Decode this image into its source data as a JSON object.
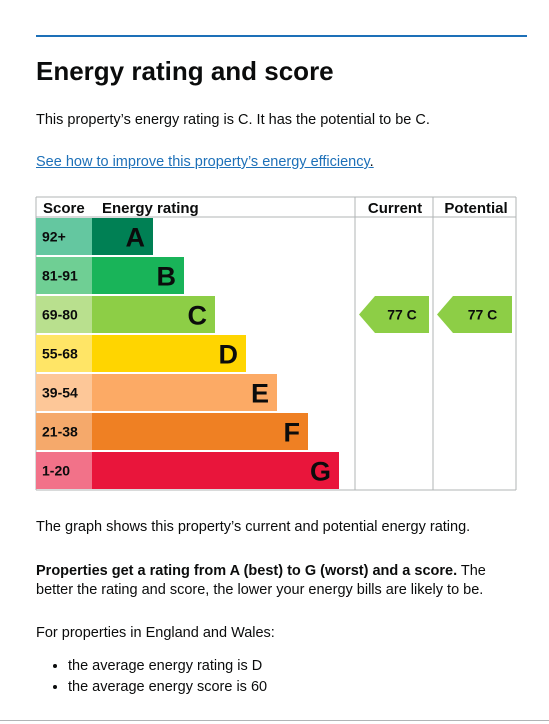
{
  "page": {
    "title": "Energy rating and score",
    "intro": "This property’s energy rating is C. It has the potential to be C.",
    "link_text": "See how to improve this property’s energy efficiency",
    "link_suffix": ".",
    "graph_note": "The graph shows this property’s current and potential energy rating.",
    "rating_bold": "Properties get a rating from A (best) to G (worst) and a score.",
    "rating_rest": " The better the rating and score, the lower your energy bills are likely to be.",
    "region_note": "For properties in England and Wales:",
    "bullets": [
      "the average energy rating is D",
      "the average energy score is 60"
    ]
  },
  "chart_data": {
    "type": "bar",
    "headers": {
      "score": "Score",
      "rating": "Energy rating",
      "current": "Current",
      "potential": "Potential"
    },
    "bands": [
      {
        "letter": "A",
        "range": "92+",
        "color": "#008054",
        "range_bg": "#64c7a0"
      },
      {
        "letter": "B",
        "range": "81-91",
        "color": "#19b459",
        "range_bg": "#6fcf94"
      },
      {
        "letter": "C",
        "range": "69-80",
        "color": "#8dce46",
        "range_bg": "#b9e08e"
      },
      {
        "letter": "D",
        "range": "55-68",
        "color": "#ffd500",
        "range_bg": "#ffe566"
      },
      {
        "letter": "E",
        "range": "39-54",
        "color": "#fcaa65",
        "range_bg": "#fdc798"
      },
      {
        "letter": "F",
        "range": "21-38",
        "color": "#ef8023",
        "range_bg": "#f5a96b"
      },
      {
        "letter": "G",
        "range": "1-20",
        "color": "#e9153b",
        "range_bg": "#f27289"
      }
    ],
    "current": {
      "score": 77,
      "letter": "C",
      "label": "77 C",
      "band": "C"
    },
    "potential": {
      "score": 77,
      "letter": "C",
      "label": "77 C",
      "band": "C"
    }
  }
}
